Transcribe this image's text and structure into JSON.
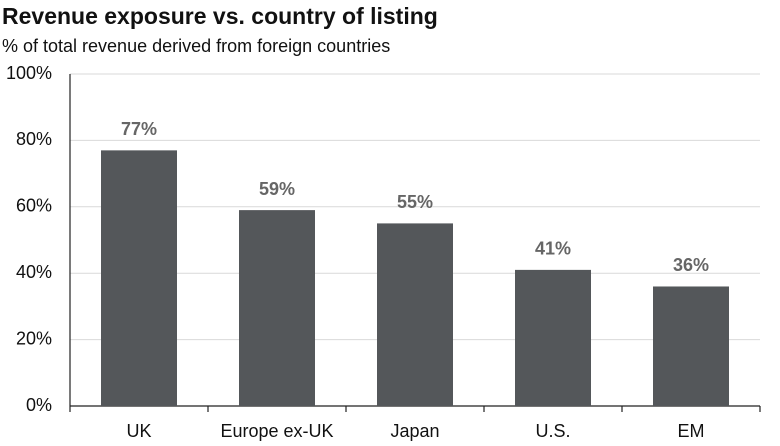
{
  "chart_data": {
    "type": "bar",
    "title": "Revenue exposure vs. country of listing",
    "subtitle": "% of total revenue  derived  from foreign  countries",
    "categories": [
      "UK",
      "Europe ex-UK",
      "Japan",
      "U.S.",
      "EM"
    ],
    "values": [
      77,
      59,
      55,
      41,
      36
    ],
    "value_labels": [
      "77%",
      "59%",
      "55%",
      "41%",
      "36%"
    ],
    "color": "#54575a",
    "ylim": [
      0,
      100
    ],
    "yticks": [
      {
        "value": 0,
        "label": "0%"
      },
      {
        "value": 20,
        "label": "20%"
      },
      {
        "value": 40,
        "label": "40%"
      },
      {
        "value": 60,
        "label": "60%"
      },
      {
        "value": 80,
        "label": "80%"
      },
      {
        "value": 100,
        "label": "100%"
      }
    ],
    "grid": true
  }
}
